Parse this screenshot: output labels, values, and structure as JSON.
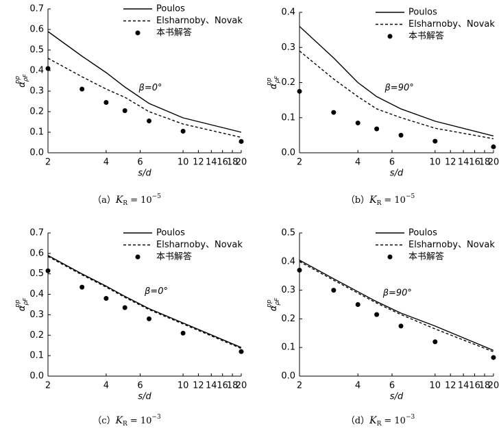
{
  "chart_data": [
    {
      "type": "line",
      "xlabel": "s/d",
      "ylabel": "α",
      "ylabel_sup": "pp",
      "ylabel_sub": "ρF",
      "annotation": "β=0°",
      "caption_prefix": "（a）",
      "caption_var": "K",
      "caption_sub": "R",
      "caption_eq": "= 10",
      "caption_exp": "−5",
      "x": [
        2,
        3,
        4,
        5,
        6.67,
        10,
        20
      ],
      "xscale": "log",
      "xlim": [
        2,
        20
      ],
      "xticks": [
        2,
        4,
        6,
        10,
        12,
        14,
        16,
        18,
        20
      ],
      "ylim": [
        0,
        0.7
      ],
      "yticks": [
        {
          "value": 0,
          "label": "0.0"
        },
        0.1,
        0.2,
        0.3,
        0.4,
        0.5,
        0.6,
        0.7
      ],
      "legend": "upper right",
      "series": [
        {
          "name": "Poulos",
          "style": "solid",
          "color": "#000000",
          "values": [
            0.59,
            0.47,
            0.39,
            0.32,
            0.24,
            0.17,
            0.1
          ]
        },
        {
          "name": "Elsharnoby、Novak",
          "style": "dashed",
          "color": "#000000",
          "values": [
            0.46,
            0.37,
            0.31,
            0.27,
            0.2,
            0.14,
            0.075
          ]
        },
        {
          "name": "本书解答",
          "style": "dots",
          "color": "#000000",
          "values": [
            0.41,
            0.31,
            0.245,
            0.205,
            0.155,
            0.105,
            0.055
          ]
        }
      ]
    },
    {
      "type": "line",
      "xlabel": "s/d",
      "ylabel": "α",
      "ylabel_sup": "pp",
      "ylabel_sub": "ρF",
      "annotation": "β=90°",
      "caption_prefix": "（b）",
      "caption_var": "K",
      "caption_sub": "R",
      "caption_eq": "= 10",
      "caption_exp": "−5",
      "x": [
        2,
        3,
        4,
        5,
        6.67,
        10,
        20
      ],
      "xscale": "log",
      "xlim": [
        2,
        20
      ],
      "xticks": [
        2,
        4,
        6,
        10,
        12,
        14,
        16,
        18,
        20
      ],
      "ylim": [
        0,
        0.4
      ],
      "yticks": [
        {
          "value": 0,
          "label": "0.0"
        },
        0.1,
        0.2,
        0.3,
        0.4
      ],
      "legend": "upper right",
      "series": [
        {
          "name": "Poulos",
          "style": "solid",
          "color": "#000000",
          "values": [
            0.36,
            0.27,
            0.2,
            0.16,
            0.125,
            0.09,
            0.048
          ]
        },
        {
          "name": "Elsharnoby、Novak",
          "style": "dashed",
          "color": "#000000",
          "values": [
            0.29,
            0.21,
            0.16,
            0.125,
            0.1,
            0.07,
            0.04
          ]
        },
        {
          "name": "本书解答",
          "style": "dots",
          "color": "#000000",
          "values": [
            0.175,
            0.115,
            0.085,
            0.068,
            0.05,
            0.033,
            0.017
          ]
        }
      ]
    },
    {
      "type": "line",
      "xlabel": "s/d",
      "ylabel": "α",
      "ylabel_sup": "pp",
      "ylabel_sub": "ρF",
      "annotation": "β=0°",
      "caption_prefix": "（c）",
      "caption_var": "K",
      "caption_sub": "R",
      "caption_eq": "= 10",
      "caption_exp": "−3",
      "x": [
        2,
        3,
        4,
        5,
        6.67,
        10,
        20
      ],
      "xscale": "log",
      "xlim": [
        2,
        20
      ],
      "xticks": [
        2,
        4,
        6,
        10,
        12,
        14,
        16,
        18,
        20
      ],
      "ylim": [
        0,
        0.7
      ],
      "yticks": [
        {
          "value": 0,
          "label": "0.0"
        },
        0.1,
        0.2,
        0.3,
        0.4,
        0.5,
        0.6,
        0.7
      ],
      "legend": "upper right",
      "series": [
        {
          "name": "Poulos",
          "style": "solid",
          "color": "#000000",
          "values": [
            0.59,
            0.5,
            0.44,
            0.39,
            0.33,
            0.26,
            0.14
          ]
        },
        {
          "name": "Elsharnoby、Novak",
          "style": "dashed",
          "color": "#000000",
          "values": [
            0.585,
            0.495,
            0.435,
            0.385,
            0.325,
            0.255,
            0.135
          ]
        },
        {
          "name": "本书解答",
          "style": "dots",
          "color": "#000000",
          "values": [
            0.515,
            0.435,
            0.38,
            0.335,
            0.28,
            0.21,
            0.12
          ]
        }
      ]
    },
    {
      "type": "line",
      "xlabel": "s/d",
      "ylabel": "α",
      "ylabel_sup": "pp",
      "ylabel_sub": "ρF",
      "annotation": "β=90°",
      "caption_prefix": "（d）",
      "caption_var": "K",
      "caption_sub": "R",
      "caption_eq": "= 10",
      "caption_exp": "−3",
      "x": [
        2,
        3,
        4,
        5,
        6.67,
        10,
        20
      ],
      "xscale": "log",
      "xlim": [
        2,
        20
      ],
      "xticks": [
        2,
        4,
        6,
        10,
        12,
        14,
        16,
        18,
        20
      ],
      "ylim": [
        0,
        0.5
      ],
      "yticks": [
        {
          "value": 0,
          "label": "0.0"
        },
        0.1,
        0.2,
        0.3,
        0.4,
        0.5
      ],
      "legend": "upper right",
      "series": [
        {
          "name": "Poulos",
          "style": "solid",
          "color": "#000000",
          "values": [
            0.405,
            0.34,
            0.295,
            0.26,
            0.22,
            0.175,
            0.09
          ]
        },
        {
          "name": "Elsharnoby、Novak",
          "style": "dashed",
          "color": "#000000",
          "values": [
            0.4,
            0.335,
            0.29,
            0.255,
            0.215,
            0.165,
            0.085
          ]
        },
        {
          "name": "本书解答",
          "style": "dots",
          "color": "#000000",
          "values": [
            0.37,
            0.3,
            0.25,
            0.215,
            0.175,
            0.12,
            0.065
          ]
        }
      ]
    }
  ]
}
